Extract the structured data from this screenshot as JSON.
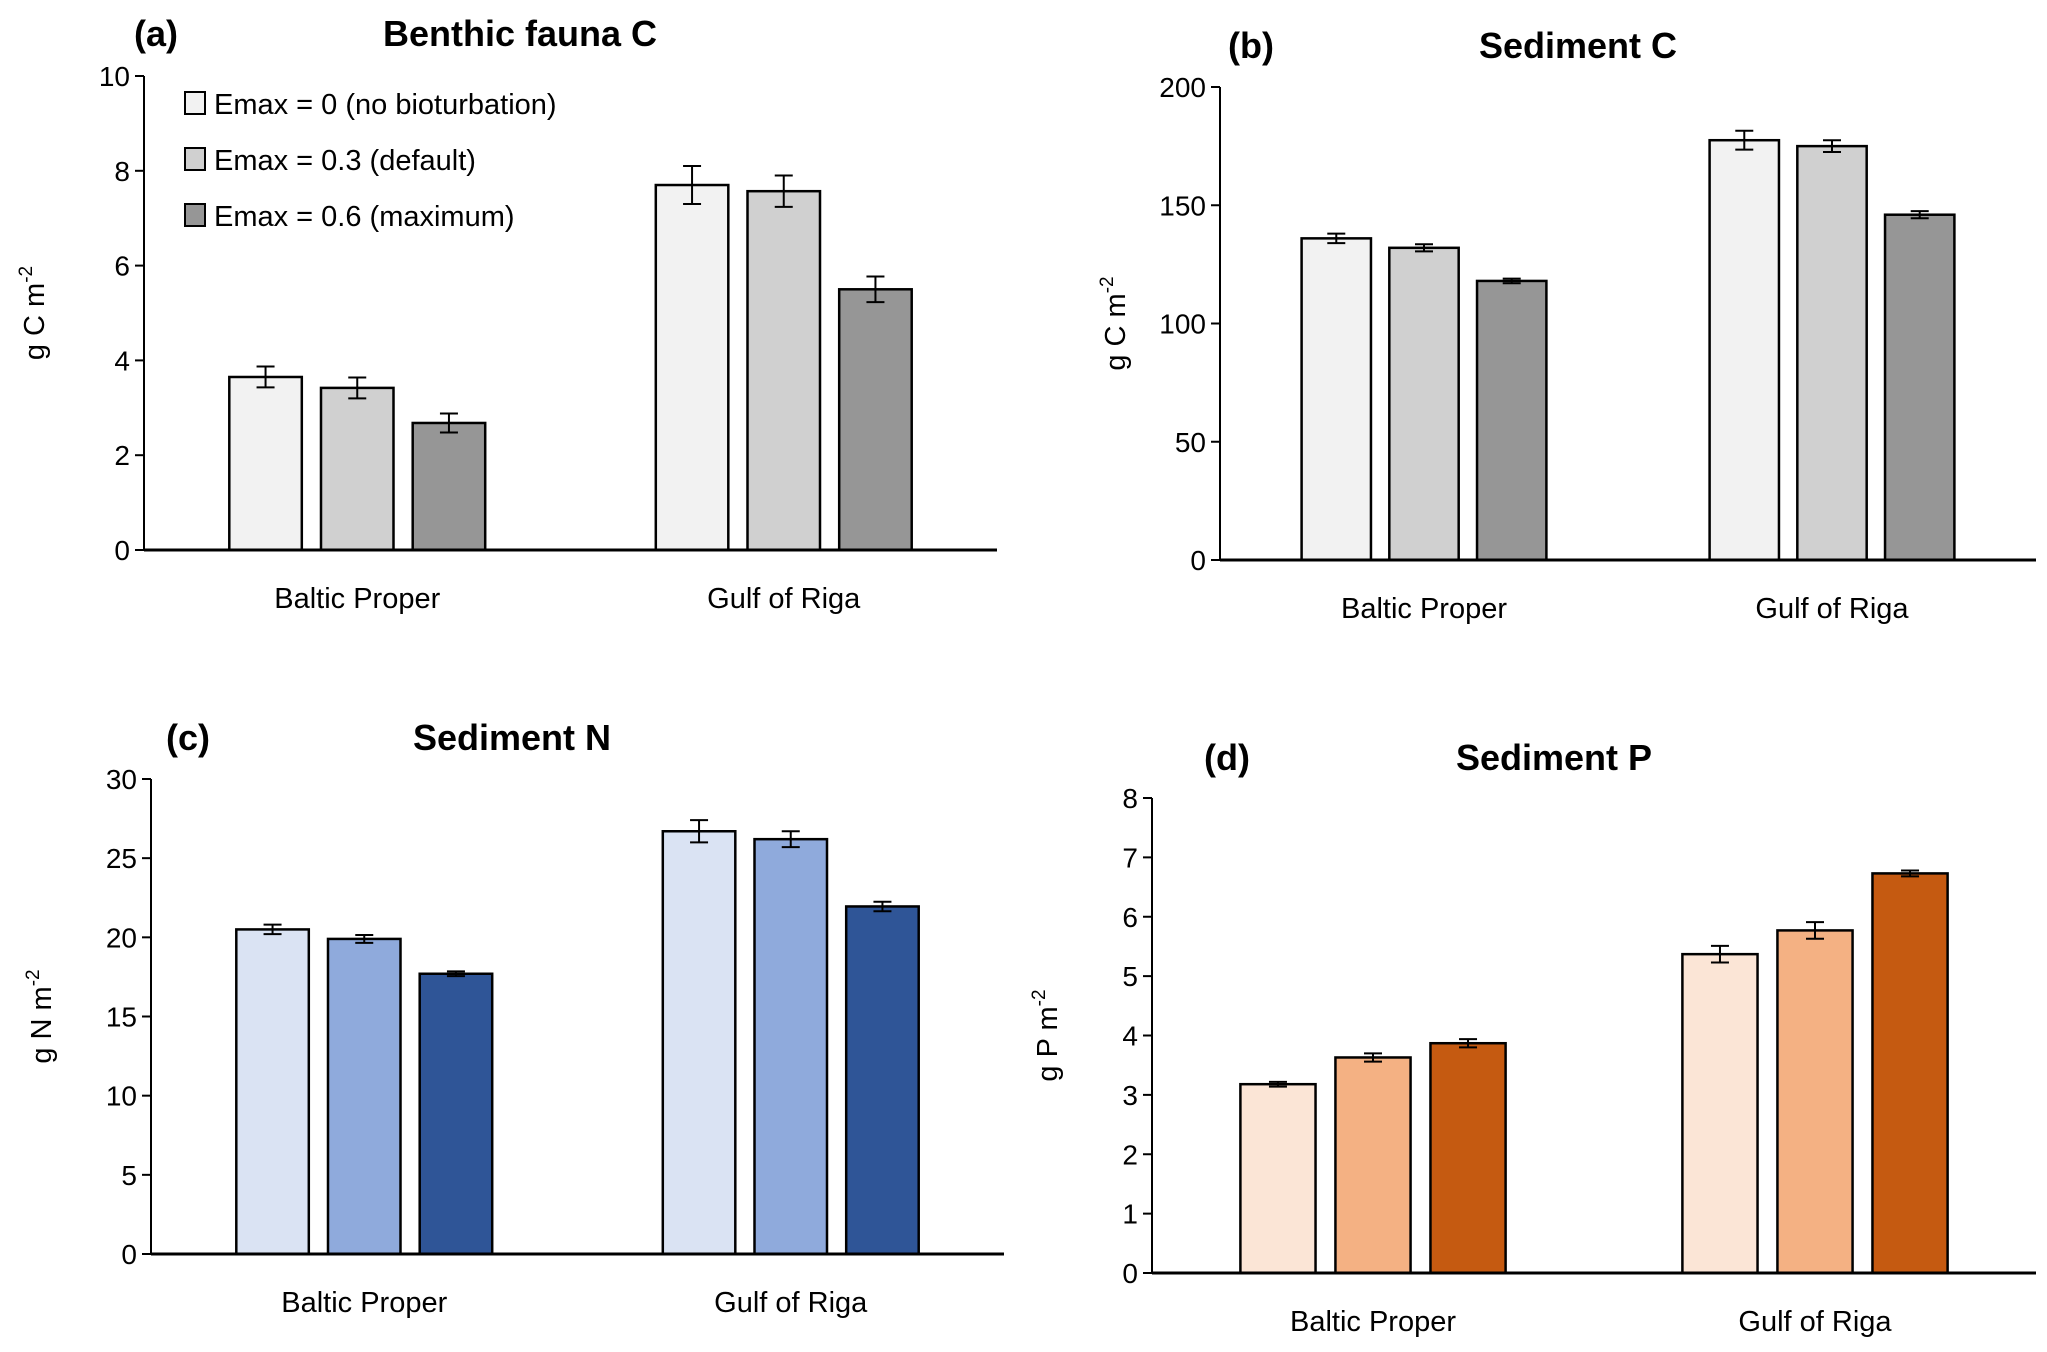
{
  "chart_data": [
    {
      "type": "bar",
      "panel": "(a)",
      "title": "Benthic fauna C",
      "ylabel": "g C m",
      "ylabel_sup": "-2",
      "ylim": [
        0,
        10
      ],
      "yticks": [
        0,
        2,
        4,
        6,
        8,
        10
      ],
      "categories": [
        "Baltic Proper",
        "Gulf of Riga"
      ],
      "colors": [
        "#f2f2f2",
        "#d0d0d0",
        "#969696"
      ],
      "legend": {
        "placement": "top-left",
        "entries": [
          "Emax = 0 (no bioturbation)",
          "Emax = 0.3 (default)",
          "Emax = 0.6 (maximum)"
        ]
      },
      "series": [
        {
          "name": "Emax = 0 (no bioturbation)",
          "values": [
            3.65,
            7.7
          ],
          "errors": [
            0.22,
            0.4
          ]
        },
        {
          "name": "Emax = 0.3 (default)",
          "values": [
            3.42,
            7.57
          ],
          "errors": [
            0.22,
            0.33
          ]
        },
        {
          "name": "Emax = 0.6 (maximum)",
          "values": [
            2.68,
            5.5
          ],
          "errors": [
            0.2,
            0.27
          ]
        }
      ]
    },
    {
      "type": "bar",
      "panel": "(b)",
      "title": "Sediment C",
      "ylabel": "g C m",
      "ylabel_sup": "-2",
      "ylim": [
        0,
        200
      ],
      "yticks": [
        0,
        50,
        100,
        150,
        200
      ],
      "categories": [
        "Baltic Proper",
        "Gulf of Riga"
      ],
      "colors": [
        "#f2f2f2",
        "#d0d0d0",
        "#969696"
      ],
      "series": [
        {
          "name": "Emax = 0 (no bioturbation)",
          "values": [
            136,
            177.5
          ],
          "errors": [
            2,
            4
          ]
        },
        {
          "name": "Emax = 0.3 (default)",
          "values": [
            132,
            175
          ],
          "errors": [
            1.5,
            2.5
          ]
        },
        {
          "name": "Emax = 0.6 (maximum)",
          "values": [
            118,
            146
          ],
          "errors": [
            1,
            1.5
          ]
        }
      ]
    },
    {
      "type": "bar",
      "panel": "(c)",
      "title": "Sediment N",
      "ylabel": "g N m",
      "ylabel_sup": "-2",
      "ylim": [
        0,
        30
      ],
      "yticks": [
        0,
        5,
        10,
        15,
        20,
        25,
        30
      ],
      "categories": [
        "Baltic Proper",
        "Gulf of Riga"
      ],
      "colors": [
        "#dae3f3",
        "#8faadc",
        "#2f5597"
      ],
      "series": [
        {
          "name": "Emax = 0 (no bioturbation)",
          "values": [
            20.5,
            26.7
          ],
          "errors": [
            0.3,
            0.7
          ]
        },
        {
          "name": "Emax = 0.3 (default)",
          "values": [
            19.9,
            26.2
          ],
          "errors": [
            0.25,
            0.5
          ]
        },
        {
          "name": "Emax = 0.6 (maximum)",
          "values": [
            17.7,
            21.95
          ],
          "errors": [
            0.15,
            0.3
          ]
        }
      ]
    },
    {
      "type": "bar",
      "panel": "(d)",
      "title": "Sediment P",
      "ylabel": "g P m",
      "ylabel_sup": "-2",
      "ylim": [
        0,
        8
      ],
      "yticks": [
        0,
        1,
        2,
        3,
        4,
        5,
        6,
        7,
        8
      ],
      "categories": [
        "Baltic Proper",
        "Gulf of Riga"
      ],
      "colors": [
        "#fbe5d6",
        "#f4b183",
        "#c55a11"
      ],
      "series": [
        {
          "name": "Emax = 0 (no bioturbation)",
          "values": [
            3.18,
            5.37
          ],
          "errors": [
            0.04,
            0.14
          ]
        },
        {
          "name": "Emax = 0.3 (default)",
          "values": [
            3.63,
            5.77
          ],
          "errors": [
            0.07,
            0.14
          ]
        },
        {
          "name": "Emax = 0.6 (maximum)",
          "values": [
            3.87,
            6.73
          ],
          "errors": [
            0.07,
            0.05
          ]
        }
      ]
    }
  ]
}
